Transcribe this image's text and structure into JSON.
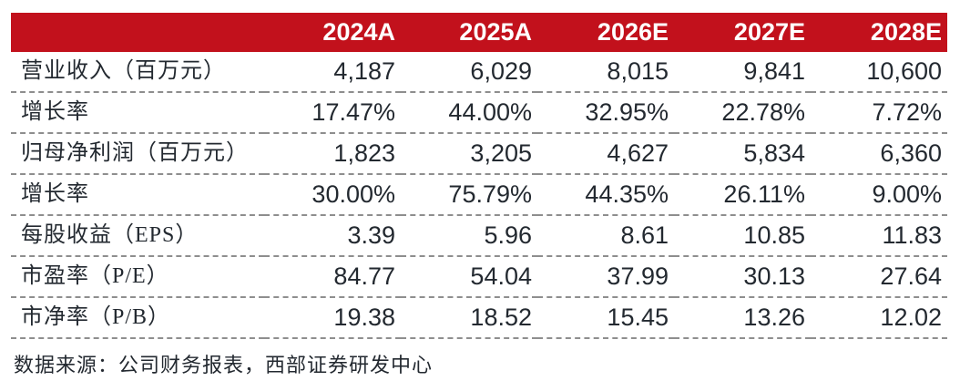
{
  "colors": {
    "header_bg": "#C2111C",
    "header_text": "#FFFFFF",
    "body_text": "#232930",
    "divider": "#8E8E8E"
  },
  "table": {
    "columns": [
      "2024A",
      "2025A",
      "2026E",
      "2027E",
      "2028E"
    ],
    "rows": [
      {
        "label": "营业收入（百万元）",
        "values": [
          "4,187",
          "6,029",
          "8,015",
          "9,841",
          "10,600"
        ]
      },
      {
        "label": "增长率",
        "values": [
          "17.47%",
          "44.00%",
          "32.95%",
          "22.78%",
          "7.72%"
        ]
      },
      {
        "label": "归母净利润（百万元）",
        "values": [
          "1,823",
          "3,205",
          "4,627",
          "5,834",
          "6,360"
        ]
      },
      {
        "label": "增长率",
        "values": [
          "30.00%",
          "75.79%",
          "44.35%",
          "26.11%",
          "9.00%"
        ]
      },
      {
        "label": "每股收益（EPS）",
        "values": [
          "3.39",
          "5.96",
          "8.61",
          "10.85",
          "11.83"
        ]
      },
      {
        "label": "市盈率（P/E）",
        "values": [
          "84.77",
          "54.04",
          "37.99",
          "30.13",
          "27.64"
        ]
      },
      {
        "label": "市净率（P/B）",
        "values": [
          "19.38",
          "18.52",
          "15.45",
          "13.26",
          "12.02"
        ]
      }
    ],
    "source_note": "数据来源：公司财务报表，西部证券研发中心"
  }
}
